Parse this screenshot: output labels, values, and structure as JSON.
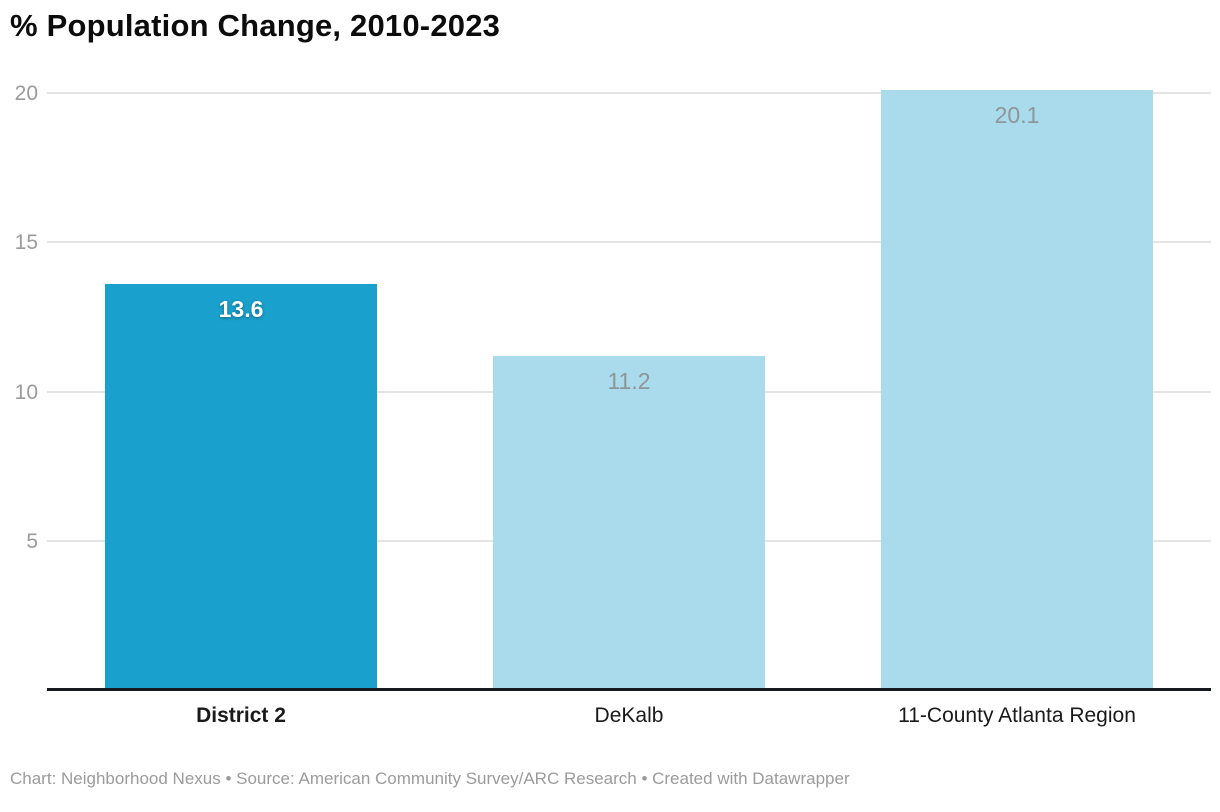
{
  "chart_data": {
    "type": "bar",
    "title": "% Population Change, 2010-2023",
    "categories": [
      "District 2",
      "DeKalb",
      "11-County Atlanta Region"
    ],
    "values": [
      13.6,
      11.2,
      20.1
    ],
    "value_labels": [
      "13.6",
      "11.2",
      "20.1"
    ],
    "highlighted_index": 0,
    "yticks": [
      5,
      10,
      15,
      20
    ],
    "ylim": [
      0,
      20.1
    ],
    "grid": "horizontal gridlines, no vertical",
    "legend_position": "none",
    "xlabel": "",
    "ylabel": "",
    "colors": {
      "highlight_bar": "#1aa0cc",
      "default_bar": "#a9dbec",
      "in_bar_value_gray": "#8d9699",
      "in_bar_value_highlight": "#ffffff",
      "gridline": "#e4e4e4",
      "axis_line": "#15181c",
      "tick_label": "#9b9b9b"
    }
  },
  "footer": {
    "text": "Chart: Neighborhood Nexus • Source: American Community Survey/ARC Research • Created with Datawrapper"
  }
}
